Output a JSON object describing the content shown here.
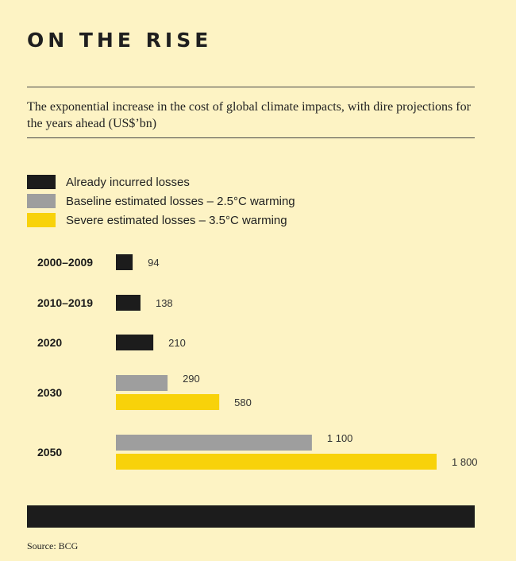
{
  "header": {
    "title": "ON THE RISE",
    "subtitle": "The exponential increase in the cost of global climate impacts, with dire projections for the years ahead (US$’bn)"
  },
  "legend": [
    {
      "label": "Already incurred losses",
      "color": "#1c1c1c"
    },
    {
      "label": "Baseline estimated losses – 2.5°C warming",
      "color": "#9e9e9e"
    },
    {
      "label": "Severe estimated losses – 3.5°C warming",
      "color": "#f8d20a"
    }
  ],
  "chart_data": {
    "type": "bar",
    "orientation": "horizontal",
    "categories": [
      "2000–2009",
      "2010–2019",
      "2020",
      "2030",
      "2050"
    ],
    "series": [
      {
        "name": "Already incurred losses",
        "color": "#1c1c1c",
        "values": [
          94,
          138,
          210,
          null,
          null
        ],
        "labels": [
          "94",
          "138",
          "210",
          null,
          null
        ]
      },
      {
        "name": "Baseline estimated losses – 2.5°C warming",
        "color": "#9e9e9e",
        "values": [
          null,
          null,
          null,
          290,
          1100
        ],
        "labels": [
          null,
          null,
          null,
          "290",
          "1 100"
        ]
      },
      {
        "name": "Severe estimated losses – 3.5°C warming",
        "color": "#f8d20a",
        "values": [
          null,
          null,
          null,
          580,
          1800
        ],
        "labels": [
          null,
          null,
          null,
          "580",
          "1 800"
        ]
      }
    ],
    "xlim": [
      0,
      1800
    ],
    "grid": false,
    "legend_position": "top-left"
  },
  "footer": {
    "source": "Source: BCG"
  }
}
